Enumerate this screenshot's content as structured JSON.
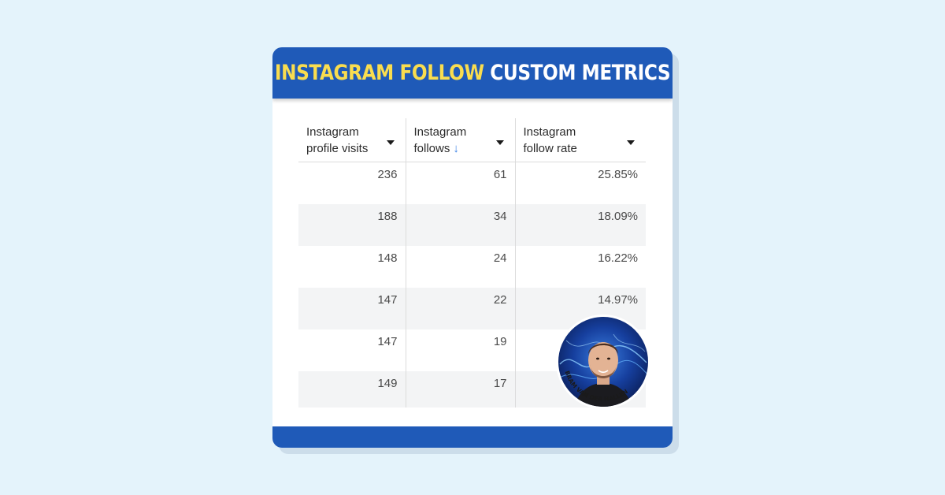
{
  "card": {
    "title_highlight": "INSTAGRAM FOLLOW",
    "title_rest": " CUSTOM METRICS",
    "header_color": "#1f5ab8",
    "highlight_color": "#f9dd4f"
  },
  "table": {
    "columns": [
      {
        "label_line1": "Instagram",
        "label_line2": "profile visits",
        "sorted": false
      },
      {
        "label_line1": "Instagram",
        "label_line2": "follows",
        "sorted": true,
        "sort_glyph": "↓"
      },
      {
        "label_line1": "Instagram",
        "label_line2": "follow rate",
        "sorted": false
      }
    ],
    "rows": [
      {
        "visits": "236",
        "follows": "61",
        "rate": "25.85%"
      },
      {
        "visits": "188",
        "follows": "34",
        "rate": "18.09%"
      },
      {
        "visits": "148",
        "follows": "24",
        "rate": "16.22%"
      },
      {
        "visits": "147",
        "follows": "22",
        "rate": "14.97%"
      },
      {
        "visits": "147",
        "follows": "19",
        "rate": ""
      },
      {
        "visits": "149",
        "follows": "17",
        "rate": ""
      }
    ]
  },
  "author": {
    "name": "BRAM VAN DER HALLEN",
    "icon": "author-portrait"
  }
}
